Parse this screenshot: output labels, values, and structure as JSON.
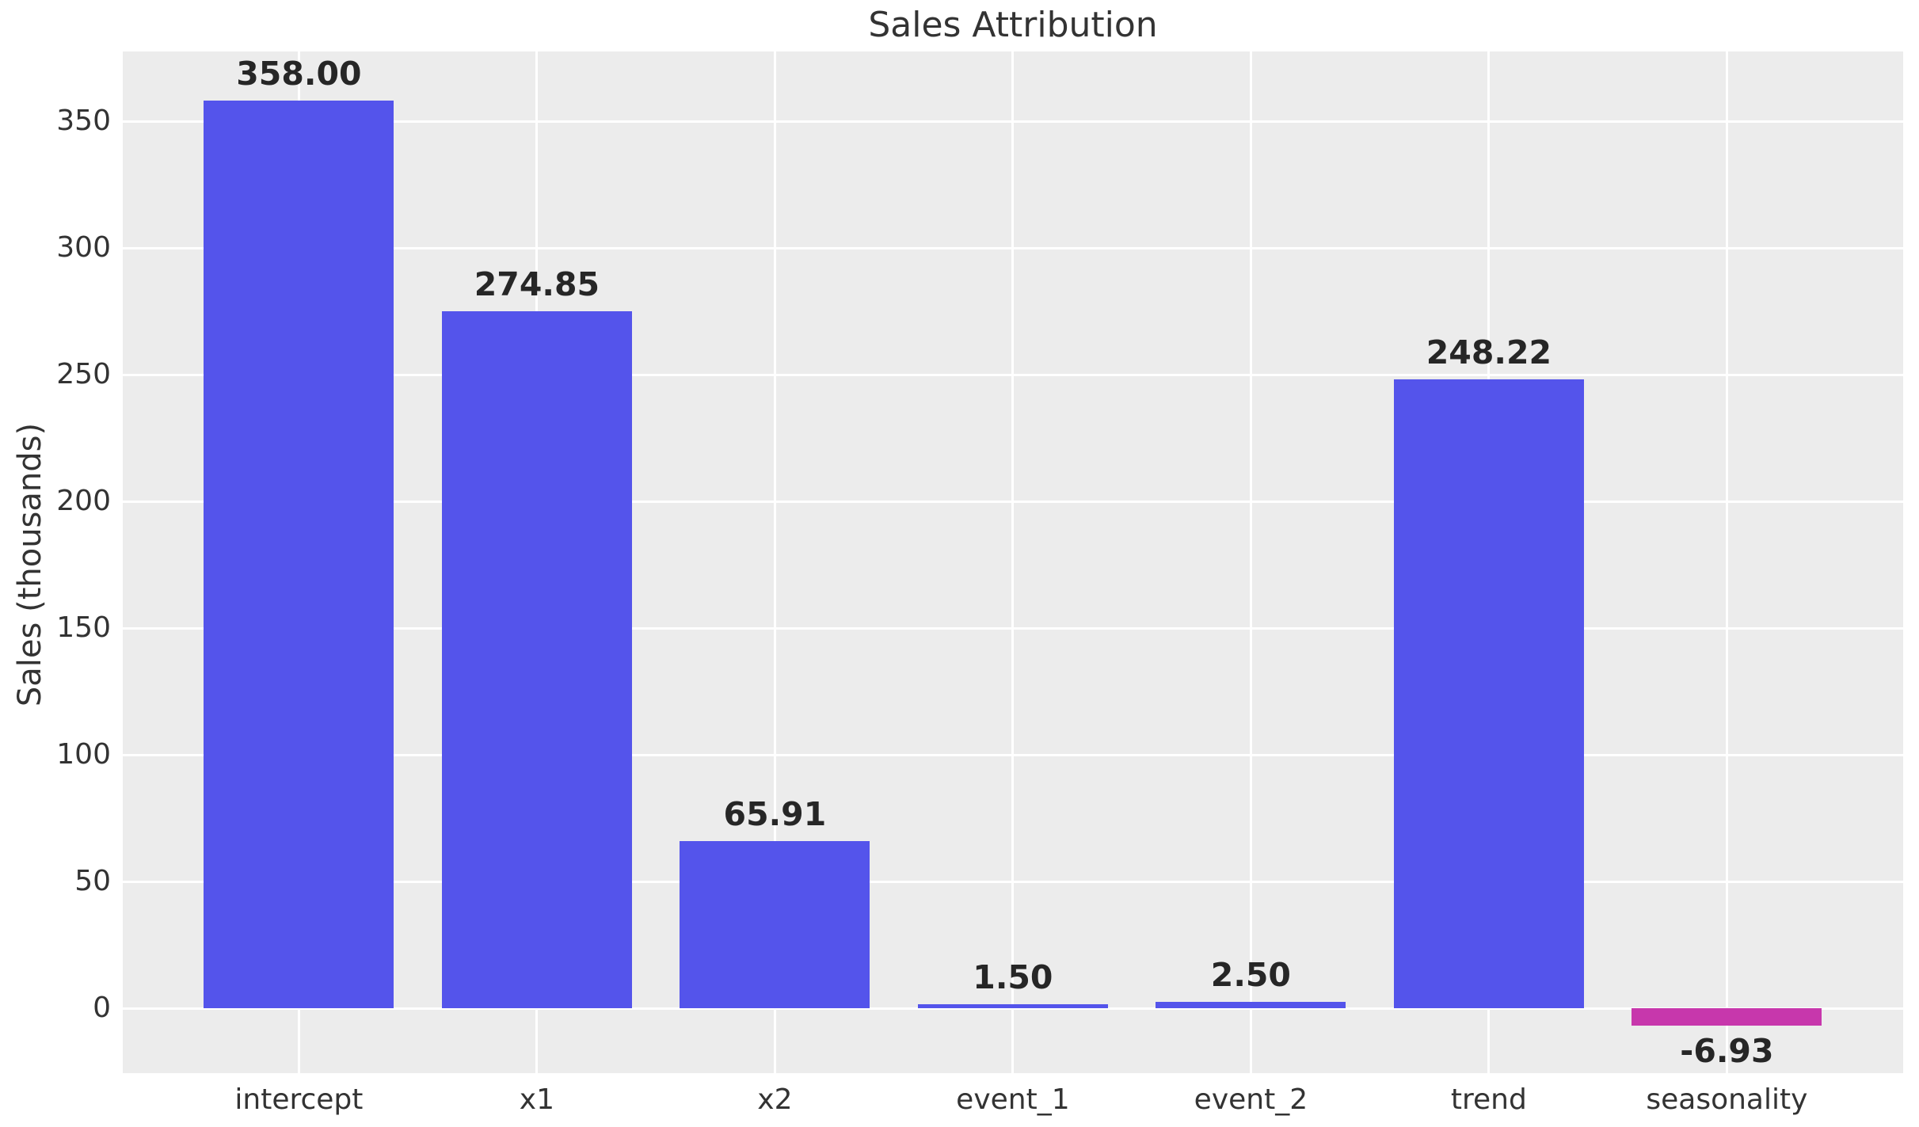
{
  "chart_data": {
    "type": "bar",
    "title": "Sales Attribution",
    "xlabel": "",
    "ylabel": "Sales (thousands)",
    "categories": [
      "intercept",
      "x1",
      "x2",
      "event_1",
      "event_2",
      "trend",
      "seasonality"
    ],
    "values": [
      358.0,
      274.85,
      65.91,
      1.5,
      2.5,
      248.22,
      -6.93
    ],
    "value_labels": [
      "358.00",
      "274.85",
      "65.91",
      "1.50",
      "2.50",
      "248.22",
      "-6.93"
    ],
    "bar_colors": [
      "#5454eb",
      "#5454eb",
      "#5454eb",
      "#5454eb",
      "#5454eb",
      "#5454eb",
      "#c737ac"
    ],
    "y_ticks": [
      0,
      50,
      100,
      150,
      200,
      250,
      300,
      350
    ],
    "y_tick_labels": [
      "0",
      "50",
      "100",
      "150",
      "200",
      "250",
      "300",
      "350"
    ],
    "ylim": [
      -25.6,
      377.5
    ],
    "grid": "on",
    "grid_color": "#ffffff",
    "plot_background": "#ececec",
    "legend": "none"
  }
}
